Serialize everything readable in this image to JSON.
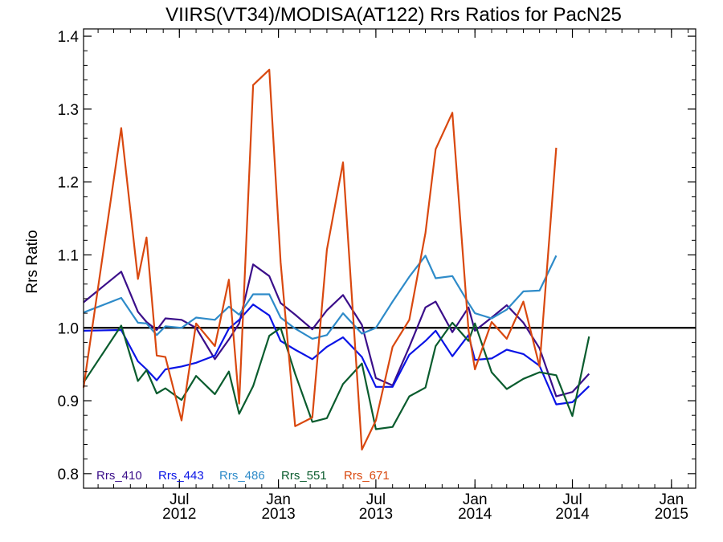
{
  "chart_data": {
    "type": "line",
    "title": "VIIRS(VT34)/MODISA(AT122)  Rrs Ratios for PacN25",
    "xlabel": "",
    "ylabel": "Rrs Ratio",
    "ylim": [
      0.78,
      1.41
    ],
    "yticks": [
      0.8,
      0.9,
      1.0,
      1.1,
      1.2,
      1.3,
      1.4
    ],
    "ytick_labels": [
      "0.8",
      "0.9",
      "1.0",
      "1.1",
      "1.2",
      "1.3",
      "1.4"
    ],
    "x_range": [
      "2012-01-05",
      "2015-02-15"
    ],
    "xticks": [
      {
        "date": "2012-07-01",
        "line1": "Jul",
        "line2": "2012"
      },
      {
        "date": "2013-01-01",
        "line1": "Jan",
        "line2": "2013"
      },
      {
        "date": "2013-07-01",
        "line1": "Jul",
        "line2": "2013"
      },
      {
        "date": "2014-01-01",
        "line1": "Jan",
        "line2": "2014"
      },
      {
        "date": "2014-07-01",
        "line1": "Jul",
        "line2": "2014"
      },
      {
        "date": "2015-01-01",
        "line1": "Jan",
        "line2": "2015"
      }
    ],
    "reference_line": 1.0,
    "x": [
      "2012-01-05",
      "2012-03-15",
      "2012-04-15",
      "2012-05-01",
      "2012-05-20",
      "2012-06-05",
      "2012-07-05",
      "2012-08-01",
      "2012-09-05",
      "2012-10-01",
      "2012-10-20",
      "2012-11-15",
      "2012-12-15",
      "2013-01-05",
      "2013-02-01",
      "2013-03-05",
      "2013-04-01",
      "2013-05-01",
      "2013-06-05",
      "2013-07-01",
      "2013-08-01",
      "2013-09-01",
      "2013-10-01",
      "2013-10-20",
      "2013-11-20",
      "2013-12-20",
      "2014-01-01",
      "2014-02-01",
      "2014-03-01",
      "2014-04-01",
      "2014-05-01",
      "2014-06-01",
      "2014-07-01",
      "2014-08-01",
      "2014-09-01",
      "2014-10-01",
      "2014-11-01",
      "2014-12-01",
      "2015-01-01",
      "2015-01-20",
      "2015-02-15"
    ],
    "series": [
      {
        "name": "Rrs_410",
        "color": "#3b0f8a",
        "values": [
          1.035,
          1.077,
          1.022,
          1.008,
          0.997,
          1.013,
          1.011,
          1.0,
          0.957,
          0.984,
          1.006,
          1.087,
          1.071,
          1.034,
          1.018,
          0.998,
          1.024,
          1.045,
          1.004,
          0.931,
          0.921,
          0.974,
          1.028,
          1.036,
          0.994,
          1.028,
          0.996,
          1.014,
          1.031,
          1.007,
          0.972,
          0.906,
          0.912,
          0.937,
          null,
          null,
          null,
          null,
          null,
          null,
          null
        ]
      },
      {
        "name": "Rrs_443",
        "color": "#0a14e6",
        "values": [
          0.996,
          0.997,
          0.954,
          0.943,
          0.928,
          0.943,
          0.947,
          0.952,
          0.962,
          0.999,
          1.011,
          1.032,
          1.017,
          0.982,
          0.97,
          0.957,
          0.974,
          0.987,
          0.96,
          0.919,
          0.919,
          0.963,
          0.982,
          0.996,
          0.961,
          0.99,
          0.956,
          0.958,
          0.97,
          0.964,
          0.948,
          0.895,
          0.898,
          0.92,
          null,
          null,
          null,
          null,
          null,
          null,
          null
        ]
      },
      {
        "name": "Rrs_486",
        "color": "#2e8bc9",
        "values": [
          1.021,
          1.041,
          1.007,
          1.006,
          0.99,
          1.002,
          1.0,
          1.014,
          1.011,
          1.029,
          1.018,
          1.046,
          1.046,
          1.014,
          0.999,
          0.985,
          0.99,
          1.02,
          0.992,
          1.0,
          1.036,
          1.07,
          1.099,
          1.068,
          1.071,
          1.034,
          1.02,
          1.013,
          1.025,
          1.05,
          1.051,
          1.099,
          null,
          null,
          null,
          null,
          null,
          null,
          null,
          null,
          null
        ]
      },
      {
        "name": "Rrs_551",
        "color": "#0a5c2e",
        "values": [
          0.925,
          1.003,
          0.927,
          0.942,
          0.91,
          0.917,
          0.901,
          0.934,
          0.909,
          0.94,
          0.882,
          0.92,
          0.989,
          1.0,
          0.937,
          0.871,
          0.876,
          0.923,
          0.951,
          0.861,
          0.864,
          0.906,
          0.918,
          0.975,
          1.007,
          0.982,
          1.006,
          0.939,
          0.916,
          0.93,
          0.939,
          0.935,
          0.879,
          0.988,
          null,
          null,
          null,
          null,
          null,
          null,
          null
        ]
      },
      {
        "name": "Rrs_671",
        "color": "#d9480f",
        "values": [
          0.918,
          1.274,
          1.067,
          1.124,
          0.962,
          0.96,
          0.873,
          1.006,
          0.975,
          1.066,
          0.896,
          1.333,
          1.354,
          1.09,
          0.865,
          0.877,
          1.107,
          1.227,
          0.833,
          0.873,
          0.974,
          1.011,
          1.13,
          1.245,
          1.295,
          0.997,
          0.943,
          1.008,
          0.985,
          1.036,
          0.947,
          1.247,
          null,
          null,
          null,
          null,
          null,
          null,
          null,
          null,
          null
        ]
      }
    ]
  }
}
